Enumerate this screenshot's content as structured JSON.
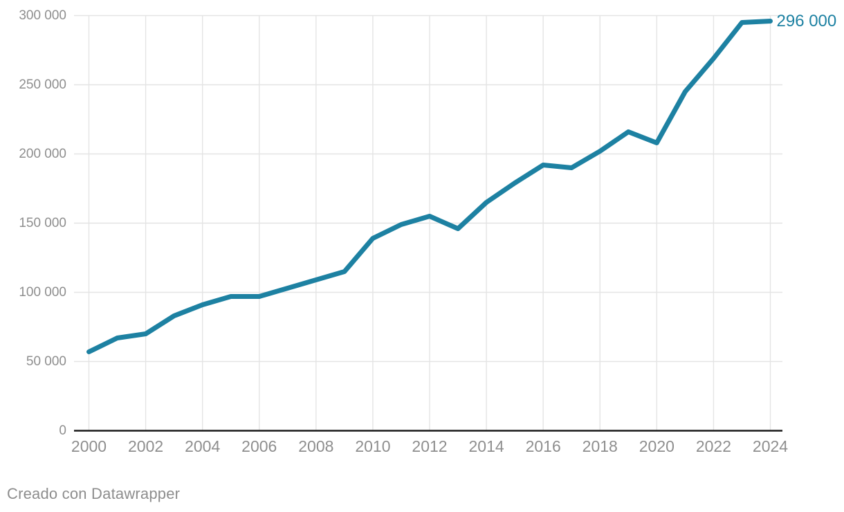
{
  "chart_data": {
    "type": "line",
    "x": [
      2000,
      2001,
      2002,
      2003,
      2004,
      2005,
      2006,
      2007,
      2008,
      2009,
      2010,
      2011,
      2012,
      2013,
      2014,
      2015,
      2016,
      2017,
      2018,
      2019,
      2020,
      2021,
      2022,
      2023,
      2024
    ],
    "values": [
      57000,
      67000,
      70000,
      83000,
      91000,
      97000,
      97000,
      103000,
      109000,
      115000,
      139000,
      149000,
      155000,
      146000,
      165000,
      179000,
      192000,
      190000,
      202000,
      216000,
      208000,
      245000,
      269000,
      295000,
      296000
    ],
    "end_label": "296 000",
    "xlim": [
      2000,
      2024
    ],
    "ylim": [
      0,
      300000
    ],
    "grid": "on",
    "legend": "none",
    "x_ticks": [
      {
        "v": 2000,
        "label": "2000"
      },
      {
        "v": 2002,
        "label": "2002"
      },
      {
        "v": 2004,
        "label": "2004"
      },
      {
        "v": 2006,
        "label": "2006"
      },
      {
        "v": 2008,
        "label": "2008"
      },
      {
        "v": 2010,
        "label": "2010"
      },
      {
        "v": 2012,
        "label": "2012"
      },
      {
        "v": 2014,
        "label": "2014"
      },
      {
        "v": 2016,
        "label": "2016"
      },
      {
        "v": 2018,
        "label": "2018"
      },
      {
        "v": 2020,
        "label": "2020"
      },
      {
        "v": 2022,
        "label": "2022"
      },
      {
        "v": 2024,
        "label": "2024"
      }
    ],
    "y_ticks": [
      {
        "v": 0,
        "label": "0"
      },
      {
        "v": 50000,
        "label": "50 000"
      },
      {
        "v": 100000,
        "label": "100 000"
      },
      {
        "v": 150000,
        "label": "150 000"
      },
      {
        "v": 200000,
        "label": "200 000"
      },
      {
        "v": 250000,
        "label": "250 000"
      },
      {
        "v": 300000,
        "label": "300 000"
      }
    ],
    "colors": {
      "line": "#1d81a2",
      "end_label": "#1d81a2",
      "tick_text": "#8e8e8e",
      "gridline": "#e4e4e4",
      "baseline": "#1a1a1a"
    }
  },
  "footer": {
    "credit": "Creado con Datawrapper"
  }
}
